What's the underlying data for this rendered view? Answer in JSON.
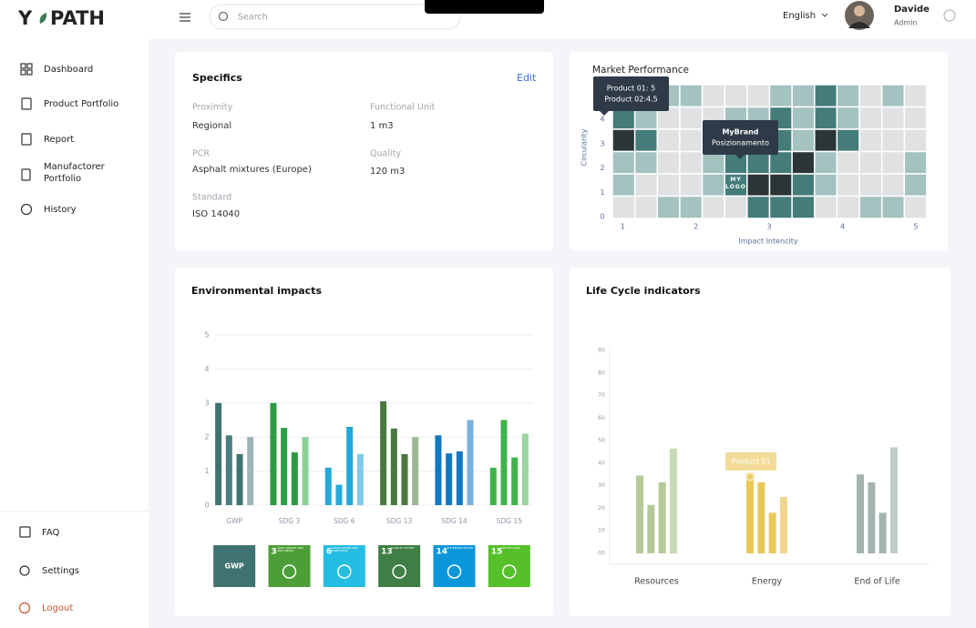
{
  "logo": {
    "left": "Y",
    "right": "PATH"
  },
  "header": {
    "search_placeholder": "Search",
    "language": "English",
    "user_name": "Davide",
    "user_role": "Admin"
  },
  "nav": {
    "items": [
      "Dashboard",
      "Product Portfolio",
      "Report",
      "Manufactorer Portfolio",
      "History"
    ],
    "bottom": [
      "FAQ",
      "Settings",
      "Logout"
    ]
  },
  "specifics": {
    "title": "Specifics",
    "edit": "Edit",
    "fields": [
      {
        "label": "Proximity",
        "value": "Regional"
      },
      {
        "label": "Functional Unit",
        "value": "1 m3"
      },
      {
        "label": "PCR",
        "value": "Asphalt mixtures (Europe)"
      },
      {
        "label": "Quality",
        "value": "120 m3"
      },
      {
        "label": "Standard",
        "value": "ISO 14040"
      }
    ]
  },
  "chart_data": [
    {
      "type": "heatmap",
      "title": "Market Performance",
      "x_label": "Impact Intencity",
      "y_label": "Circularity",
      "xlim": [
        0.86,
        5.15
      ],
      "ylim": [
        -0.07,
        5.42
      ],
      "xticks": [
        1,
        2,
        3,
        4,
        5
      ],
      "yticks": [
        0,
        1,
        2,
        3,
        4
      ],
      "colors": [
        "#dfe1e2",
        "#a3c2c0",
        "#437c79",
        "#2b3538"
      ],
      "values": [
        [
          1,
          1,
          1,
          1,
          0,
          0,
          0,
          1,
          1,
          2,
          1,
          0,
          1,
          0
        ],
        [
          2,
          1,
          0,
          0,
          0,
          1,
          1,
          2,
          1,
          2,
          1,
          0,
          0,
          0
        ],
        [
          3,
          2,
          0,
          0,
          0,
          1,
          2,
          2,
          1,
          3,
          2,
          0,
          0,
          0
        ],
        [
          1,
          1,
          0,
          0,
          1,
          2,
          2,
          2,
          3,
          1,
          0,
          0,
          0,
          1
        ],
        [
          1,
          0,
          0,
          0,
          1,
          2,
          3,
          3,
          2,
          1,
          0,
          0,
          0,
          1
        ],
        [
          0,
          0,
          1,
          1,
          0,
          0,
          2,
          2,
          2,
          0,
          0,
          1,
          1,
          0
        ]
      ],
      "annotations": [
        {
          "lines": [
            "Product 01: 5",
            "Product 02:4.5"
          ]
        },
        {
          "lines": [
            "MyBrand",
            "Posizionamento"
          ]
        }
      ],
      "cell_label": "MY LOGO"
    },
    {
      "type": "bar",
      "title": "Environmental impacts",
      "categories": [
        "GWP",
        "SDG 3",
        "SDG 6",
        "SDG 13",
        "SDG 14",
        "SDG 15"
      ],
      "series": [
        {
          "values": [
            3,
            3,
            1.1,
            3.05,
            2.05,
            1.1
          ]
        },
        {
          "values": [
            2.05,
            2.27,
            0.6,
            2.25,
            1.52,
            2.5
          ]
        },
        {
          "values": [
            1.5,
            1.55,
            2.3,
            1.5,
            1.58,
            1.4
          ]
        },
        {
          "values": [
            2,
            2,
            1.5,
            2,
            2.5,
            2.1
          ]
        }
      ],
      "category_colors": [
        [
          "#3e7372",
          "#4a7e7d",
          "#3e7372",
          "#9db5b6"
        ],
        [
          "#2c9b43",
          "#2f9e46",
          "#2e9a44",
          "#8ccf98"
        ],
        [
          "#25aad8",
          "#25aad8",
          "#23a9d9",
          "#7fcbe6"
        ],
        [
          "#487a3f",
          "#477a3e",
          "#487a3f",
          "#9cb893"
        ],
        [
          "#1177bf",
          "#1478c0",
          "#1478c0",
          "#79b2dd"
        ],
        [
          "#3fb44b",
          "#3fb44b",
          "#3fb44b",
          "#9bd59e"
        ]
      ],
      "ylim": [
        0,
        5
      ],
      "yticks": [
        0,
        1,
        2,
        3,
        4,
        5
      ],
      "grid": true,
      "icons": [
        {
          "label": "GWP",
          "color": "#3e7372"
        },
        {
          "label": "3",
          "caption": "GOOD HEALTH AND WELL-BEING",
          "color": "#4c9f38"
        },
        {
          "label": "6",
          "caption": "CLEAN WATER AND SANITATION",
          "color": "#26bde2"
        },
        {
          "label": "13",
          "caption": "CLIMATE ACTION",
          "color": "#3f7e44"
        },
        {
          "label": "14",
          "caption": "LIFE BELOW WATER",
          "color": "#0a97d9"
        },
        {
          "label": "15",
          "caption": "LIFE ON LAND",
          "color": "#56c02b"
        }
      ]
    },
    {
      "type": "bar",
      "title": "Life Cycle indicators",
      "categories": [
        "Resources",
        "Energy",
        "End of Life"
      ],
      "series": [
        {
          "values": [
            34.5,
            35.5,
            35
          ]
        },
        {
          "values": [
            21.5,
            31.5,
            31.5
          ]
        },
        {
          "values": [
            31.5,
            18,
            18
          ]
        },
        {
          "values": [
            46.5,
            25,
            47
          ]
        }
      ],
      "category_colors": [
        [
          "#b3ca98",
          "#b3ca98",
          "#b3ca98",
          "#c9dab6"
        ],
        [
          "#e9c857",
          "#e9c857",
          "#e9c857",
          "#efd88b"
        ],
        [
          "#a3b3b0",
          "#a3b3b0",
          "#a3b3b0",
          "#bfcbc9"
        ]
      ],
      "ylim": [
        0,
        90
      ],
      "yticks": [
        {
          "value": 0,
          "label": "00"
        },
        10,
        20,
        30,
        40,
        50,
        60,
        70,
        80,
        90
      ],
      "grid": false,
      "tooltip": "Product 01"
    }
  ]
}
